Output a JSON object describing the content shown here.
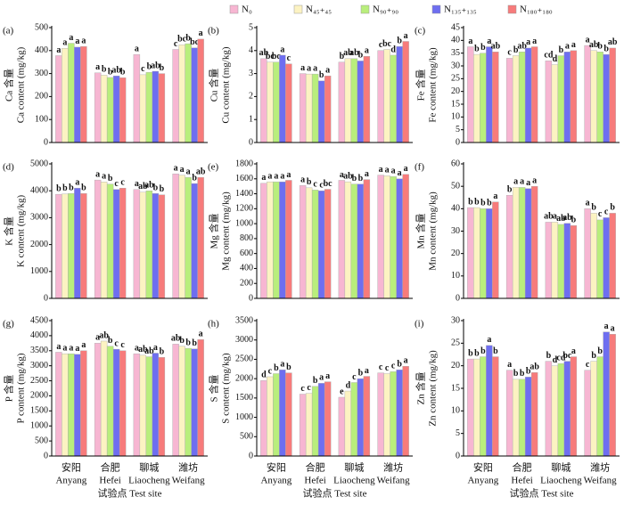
{
  "legend": [
    {
      "name": "N₀",
      "color": "#f7b6d2"
    },
    {
      "name": "N₄₅₊₄₅",
      "color": "#fcf3c2"
    },
    {
      "name": "N₉₀₊₉₀",
      "color": "#b9ee7c"
    },
    {
      "name": "N₁₃₅₊₁₃₅",
      "color": "#6e6ef0"
    },
    {
      "name": "N₁₈₀₊₁₈₀",
      "color": "#f77b7b"
    }
  ],
  "x_axis": {
    "categories": [
      "安阳",
      "合肥",
      "聊城",
      "潍坊"
    ],
    "categories_en": [
      "Anyang",
      "Hefei",
      "Liaocheng",
      "Weifang"
    ],
    "label": "试验点 Test site"
  },
  "chart_data": [
    {
      "type": "bar",
      "panel": "(a)",
      "ylabel_cn": "Ca 含量",
      "ylabel_en": "Ca content (mg/kg)",
      "ylim": [
        0,
        500
      ],
      "yticks": [
        0,
        100,
        200,
        300,
        400,
        500
      ],
      "series": [
        {
          "values": [
            378,
            303,
            383,
            405
          ],
          "letters": [
            "a",
            "a",
            "a",
            "c"
          ]
        },
        {
          "values": [
            410,
            293,
            295,
            425
          ],
          "letters": [
            "a",
            "b",
            "c",
            "bc"
          ]
        },
        {
          "values": [
            432,
            283,
            305,
            430
          ],
          "letters": [
            "a",
            "b",
            "b",
            "b"
          ]
        },
        {
          "values": [
            415,
            290,
            310,
            412
          ],
          "letters": [
            "a",
            "ab",
            "ab",
            "bc"
          ]
        },
        {
          "values": [
            418,
            282,
            300,
            450
          ],
          "letters": [
            "a",
            "b",
            "b",
            "a"
          ]
        }
      ]
    },
    {
      "type": "bar",
      "panel": "(b)",
      "ylabel_cn": "Cu 含量",
      "ylabel_en": "Cu content (mg/kg)",
      "ylim": [
        0,
        5
      ],
      "yticks": [
        0,
        1,
        2,
        3,
        4,
        5
      ],
      "series": [
        {
          "values": [
            3.65,
            3.0,
            3.5,
            4.0
          ],
          "letters": [
            "ab",
            "a",
            "b",
            "c"
          ]
        },
        {
          "values": [
            3.5,
            2.98,
            3.65,
            4.05
          ],
          "letters": [
            "bc",
            "a",
            "ab",
            "bc"
          ]
        },
        {
          "values": [
            3.5,
            2.98,
            3.65,
            3.8
          ],
          "letters": [
            "bc",
            "a",
            "ab",
            "d"
          ]
        },
        {
          "values": [
            3.8,
            2.68,
            3.55,
            4.18
          ],
          "letters": [
            "a",
            "b",
            "b",
            "b"
          ]
        },
        {
          "values": [
            3.42,
            2.9,
            3.75,
            4.4
          ],
          "letters": [
            "c",
            "a",
            "a",
            "a"
          ]
        }
      ]
    },
    {
      "type": "bar",
      "panel": "(c)",
      "ylabel_cn": "Fe 含量",
      "ylabel_en": "Fe content (mg/kg)",
      "ylim": [
        0,
        45
      ],
      "yticks": [
        0,
        5,
        10,
        15,
        20,
        25,
        30,
        35,
        40,
        45
      ],
      "series": [
        {
          "values": [
            37.5,
            33,
            32,
            38
          ],
          "letters": [
            "a",
            "c",
            "cd",
            "a"
          ]
        },
        {
          "values": [
            34.5,
            34,
            30.5,
            36
          ],
          "letters": [
            "b",
            "b",
            "d",
            "ab"
          ]
        },
        {
          "values": [
            35,
            35.5,
            34,
            35.5
          ],
          "letters": [
            "b",
            "ab",
            "b",
            "b"
          ]
        },
        {
          "values": [
            37.5,
            37,
            35.5,
            34.5
          ],
          "letters": [
            "a",
            "a",
            "a",
            "b"
          ]
        },
        {
          "values": [
            35.5,
            37.5,
            36,
            37
          ],
          "letters": [
            "ab",
            "a",
            "a",
            "ab"
          ]
        }
      ]
    },
    {
      "type": "bar",
      "panel": "(d)",
      "ylabel_cn": "K 含量",
      "ylabel_en": "K content (mg/kg)",
      "ylim": [
        0,
        5000
      ],
      "yticks": [
        0,
        1000,
        2000,
        3000,
        4000,
        5000
      ],
      "series": [
        {
          "values": [
            3870,
            4400,
            4050,
            4630
          ],
          "letters": [
            "b",
            "a",
            "a",
            "a"
          ]
        },
        {
          "values": [
            3880,
            4330,
            3950,
            4580
          ],
          "letters": [
            "b",
            "a",
            "ab",
            "a"
          ]
        },
        {
          "values": [
            3900,
            4250,
            4000,
            4500
          ],
          "letters": [
            "b",
            "b",
            "ab",
            "a"
          ]
        },
        {
          "values": [
            4100,
            4050,
            3900,
            4270
          ],
          "letters": [
            "a",
            "c",
            "b",
            "b"
          ]
        },
        {
          "values": [
            3900,
            4100,
            3850,
            4500
          ],
          "letters": [
            "b",
            "c",
            "b",
            "ab"
          ]
        }
      ]
    },
    {
      "type": "bar",
      "panel": "(e)",
      "ylabel_cn": "Mg 含量",
      "ylabel_en": "Mg content (mg/kg)",
      "ylim": [
        0,
        1800
      ],
      "yticks": [
        0,
        200,
        400,
        600,
        800,
        1000,
        1200,
        1400,
        1600,
        1800
      ],
      "series": [
        {
          "values": [
            1540,
            1510,
            1580,
            1650
          ],
          "letters": [
            "a",
            "a",
            "a",
            "a"
          ]
        },
        {
          "values": [
            1560,
            1480,
            1560,
            1640
          ],
          "letters": [
            "a",
            "b",
            "ab",
            "a"
          ]
        },
        {
          "values": [
            1560,
            1450,
            1530,
            1630
          ],
          "letters": [
            "a",
            "c",
            "b",
            "a"
          ]
        },
        {
          "values": [
            1560,
            1440,
            1530,
            1600
          ],
          "letters": [
            "a",
            "c",
            "b",
            "a"
          ]
        },
        {
          "values": [
            1580,
            1460,
            1590,
            1660
          ],
          "letters": [
            "a",
            "bc",
            "a",
            "a"
          ]
        }
      ]
    },
    {
      "type": "bar",
      "panel": "(f)",
      "ylabel_cn": "Mn 含量",
      "ylabel_en": "Mn content (mg/kg)",
      "ylim": [
        0,
        60
      ],
      "yticks": [
        0,
        10,
        20,
        30,
        40,
        50,
        60
      ],
      "series": [
        {
          "values": [
            40.5,
            46,
            34,
            40
          ],
          "letters": [
            "b",
            "b",
            "ab",
            "a"
          ]
        },
        {
          "values": [
            40.5,
            49.5,
            34,
            38
          ],
          "letters": [
            "b",
            "a",
            "a",
            "b"
          ]
        },
        {
          "values": [
            40,
            49.5,
            33,
            35
          ],
          "letters": [
            "b",
            "a",
            "ab",
            "c"
          ]
        },
        {
          "values": [
            40,
            49,
            33.5,
            36
          ],
          "letters": [
            "b",
            "a",
            "ab",
            "c"
          ]
        },
        {
          "values": [
            43,
            50,
            32.5,
            38
          ],
          "letters": [
            "a",
            "a",
            "b",
            "b"
          ]
        }
      ]
    },
    {
      "type": "bar",
      "panel": "(g)",
      "ylabel_cn": "P 含量",
      "ylabel_en": "P content (mg/kg)",
      "ylim": [
        0,
        4500
      ],
      "yticks": [
        0,
        500,
        1000,
        1500,
        2000,
        2500,
        3000,
        3500,
        4000,
        4500
      ],
      "series": [
        {
          "values": [
            3450,
            3750,
            3400,
            3720
          ],
          "letters": [
            "a",
            "a",
            "a",
            "ab"
          ]
        },
        {
          "values": [
            3400,
            3820,
            3350,
            3650
          ],
          "letters": [
            "a",
            "ab",
            "ab",
            "b"
          ]
        },
        {
          "values": [
            3400,
            3650,
            3300,
            3580
          ],
          "letters": [
            "a",
            "b",
            "ab",
            "b"
          ]
        },
        {
          "values": [
            3380,
            3550,
            3420,
            3560
          ],
          "letters": [
            "a",
            "c",
            "a",
            "b"
          ]
        },
        {
          "values": [
            3500,
            3500,
            3280,
            3870
          ],
          "letters": [
            "a",
            "c",
            "b",
            "a"
          ]
        }
      ]
    },
    {
      "type": "bar",
      "panel": "(h)",
      "ylabel_cn": "S 含量",
      "ylabel_en": "S content (mg/kg)",
      "ylim": [
        0,
        3500
      ],
      "yticks": [
        0,
        500,
        1000,
        1500,
        2000,
        2500,
        3000,
        3500
      ],
      "series": [
        {
          "values": [
            1950,
            1600,
            1520,
            2150
          ],
          "letters": [
            "d",
            "c",
            "e",
            "c"
          ]
        },
        {
          "values": [
            2050,
            1620,
            1680,
            2130
          ],
          "letters": [
            "c",
            "c",
            "d",
            "c"
          ]
        },
        {
          "values": [
            2130,
            1800,
            1900,
            2180
          ],
          "letters": [
            "b",
            "b",
            "c",
            "c"
          ]
        },
        {
          "values": [
            2230,
            1880,
            2000,
            2230
          ],
          "letters": [
            "a",
            "a",
            "b",
            "b"
          ]
        },
        {
          "values": [
            2150,
            1920,
            2060,
            2320
          ],
          "letters": [
            "b",
            "a",
            "a",
            "a"
          ]
        }
      ]
    },
    {
      "type": "bar",
      "panel": "(i)",
      "ylabel_cn": "Zn 含量",
      "ylabel_en": "Zn content (mg/kg)",
      "ylim": [
        0,
        30
      ],
      "yticks": [
        0,
        5,
        10,
        15,
        20,
        25,
        30
      ],
      "series": [
        {
          "values": [
            21.5,
            19,
            21,
            19
          ],
          "letters": [
            "b",
            "a",
            "b",
            "c"
          ]
        },
        {
          "values": [
            21.5,
            17,
            20,
            21
          ],
          "letters": [
            "b",
            "b",
            "d",
            "b"
          ]
        },
        {
          "values": [
            22,
            17,
            20.5,
            22
          ],
          "letters": [
            "b",
            "b",
            "cd",
            "b"
          ]
        },
        {
          "values": [
            24.5,
            17.5,
            21,
            27.5
          ],
          "letters": [
            "a",
            "b",
            "bc",
            "a"
          ]
        },
        {
          "values": [
            22,
            18.5,
            22,
            27
          ],
          "letters": [
            "b",
            "ab",
            "a",
            "a"
          ]
        }
      ]
    }
  ]
}
